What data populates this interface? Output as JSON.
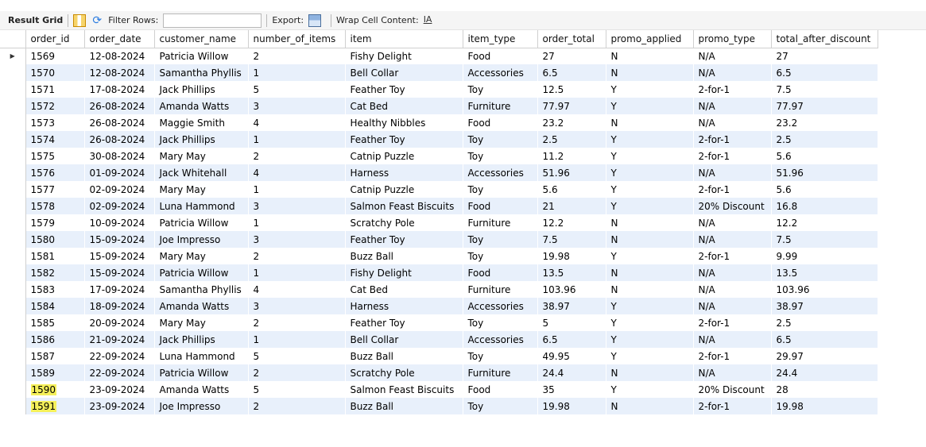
{
  "toolbar": {
    "result_grid_label": "Result Grid",
    "filter_label": "Filter Rows:",
    "filter_value": "",
    "export_label": "Export:",
    "wrap_label": "Wrap Cell Content:",
    "wrap_icon_glyph": "IA"
  },
  "columns": [
    "order_id",
    "order_date",
    "customer_name",
    "number_of_items",
    "item",
    "item_type",
    "order_total",
    "promo_applied",
    "promo_type",
    "total_after_discount"
  ],
  "current_row_marker": "▶",
  "highlight_color": "#f5f05a",
  "rows": [
    [
      "1569",
      "12-08-2024",
      "Patricia Willow",
      "2",
      "Fishy Delight",
      "Food",
      "27",
      "N",
      "N/A",
      "27"
    ],
    [
      "1570",
      "12-08-2024",
      "Samantha Phyllis",
      "1",
      "Bell Collar",
      "Accessories",
      "6.5",
      "N",
      "N/A",
      "6.5"
    ],
    [
      "1571",
      "17-08-2024",
      "Jack Phillips",
      "5",
      "Feather Toy",
      "Toy",
      "12.5",
      "Y",
      "2-for-1",
      "7.5"
    ],
    [
      "1572",
      "26-08-2024",
      "Amanda Watts",
      "3",
      "Cat Bed",
      "Furniture",
      "77.97",
      "Y",
      "N/A",
      "77.97"
    ],
    [
      "1573",
      "26-08-2024",
      "Maggie Smith",
      "4",
      "Healthy Nibbles",
      "Food",
      "23.2",
      "N",
      "N/A",
      "23.2"
    ],
    [
      "1574",
      "26-08-2024",
      "Jack Phillips",
      "1",
      "Feather Toy",
      "Toy",
      "2.5",
      "Y",
      "2-for-1",
      "2.5"
    ],
    [
      "1575",
      "30-08-2024",
      "Mary May",
      "2",
      "Catnip Puzzle",
      "Toy",
      "11.2",
      "Y",
      "2-for-1",
      "5.6"
    ],
    [
      "1576",
      "01-09-2024",
      "Jack Whitehall",
      "4",
      "Harness",
      "Accessories",
      "51.96",
      "Y",
      "N/A",
      "51.96"
    ],
    [
      "1577",
      "02-09-2024",
      "Mary May",
      "1",
      "Catnip Puzzle",
      "Toy",
      "5.6",
      "Y",
      "2-for-1",
      "5.6"
    ],
    [
      "1578",
      "02-09-2024",
      "Luna Hammond",
      "3",
      "Salmon Feast Biscuits",
      "Food",
      "21",
      "Y",
      "20% Discount",
      "16.8"
    ],
    [
      "1579",
      "10-09-2024",
      "Patricia Willow",
      "1",
      "Scratchy Pole",
      "Furniture",
      "12.2",
      "N",
      "N/A",
      "12.2"
    ],
    [
      "1580",
      "15-09-2024",
      "Joe Impresso",
      "3",
      "Feather Toy",
      "Toy",
      "7.5",
      "N",
      "N/A",
      "7.5"
    ],
    [
      "1581",
      "15-09-2024",
      "Mary May",
      "2",
      "Buzz Ball",
      "Toy",
      "19.98",
      "Y",
      "2-for-1",
      "9.99"
    ],
    [
      "1582",
      "15-09-2024",
      "Patricia Willow",
      "1",
      "Fishy Delight",
      "Food",
      "13.5",
      "N",
      "N/A",
      "13.5"
    ],
    [
      "1583",
      "17-09-2024",
      "Samantha Phyllis",
      "4",
      "Cat Bed",
      "Furniture",
      "103.96",
      "N",
      "N/A",
      "103.96"
    ],
    [
      "1584",
      "18-09-2024",
      "Amanda Watts",
      "3",
      "Harness",
      "Accessories",
      "38.97",
      "Y",
      "N/A",
      "38.97"
    ],
    [
      "1585",
      "20-09-2024",
      "Mary May",
      "2",
      "Feather Toy",
      "Toy",
      "5",
      "Y",
      "2-for-1",
      "2.5"
    ],
    [
      "1586",
      "21-09-2024",
      "Jack Phillips",
      "1",
      "Bell Collar",
      "Accessories",
      "6.5",
      "Y",
      "N/A",
      "6.5"
    ],
    [
      "1587",
      "22-09-2024",
      "Luna Hammond",
      "5",
      "Buzz Ball",
      "Toy",
      "49.95",
      "Y",
      "2-for-1",
      "29.97"
    ],
    [
      "1589",
      "22-09-2024",
      "Patricia Willow",
      "2",
      "Scratchy Pole",
      "Furniture",
      "24.4",
      "N",
      "N/A",
      "24.4"
    ],
    [
      "1590",
      "23-09-2024",
      "Amanda Watts",
      "5",
      "Salmon Feast Biscuits",
      "Food",
      "35",
      "Y",
      "20% Discount",
      "28"
    ],
    [
      "1591",
      "23-09-2024",
      "Joe Impresso",
      "2",
      "Buzz Ball",
      "Toy",
      "19.98",
      "N",
      "2-for-1",
      "19.98"
    ]
  ],
  "highlighted_order_ids": [
    "1590",
    "1591"
  ]
}
